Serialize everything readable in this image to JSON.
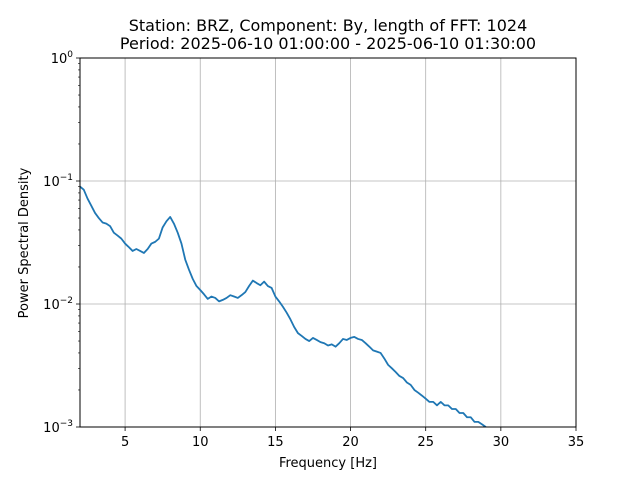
{
  "chart_data": {
    "type": "line",
    "title": [
      "Station: BRZ, Component: By, length of FFT: 1024",
      "Period: 2025-06-10 01:00:00 - 2025-06-10 01:30:00"
    ],
    "xlabel": "Frequency [Hz]",
    "ylabel": "Power Spectral Density",
    "xlim": [
      2,
      35
    ],
    "ylim": [
      0.001,
      1
    ],
    "yscale": "log",
    "grid": true,
    "xticks": [
      5,
      10,
      15,
      20,
      25,
      30,
      35
    ],
    "xtick_labels": [
      "5",
      "10",
      "15",
      "20",
      "25",
      "30",
      "35"
    ],
    "yticks": [
      0.001,
      0.01,
      0.1,
      1
    ],
    "ytick_labels": [
      {
        "base": "10",
        "exp": "−3"
      },
      {
        "base": "10",
        "exp": "−2"
      },
      {
        "base": "10",
        "exp": "−1"
      },
      {
        "base": "10",
        "exp": "0"
      }
    ],
    "series": [
      {
        "color": "#1f77b4",
        "x": [
          2.0,
          2.25,
          2.5,
          2.75,
          3.0,
          3.25,
          3.5,
          3.75,
          4.0,
          4.25,
          4.5,
          4.75,
          5.0,
          5.25,
          5.5,
          5.75,
          6.0,
          6.25,
          6.5,
          6.75,
          7.0,
          7.25,
          7.5,
          7.75,
          8.0,
          8.25,
          8.5,
          8.75,
          9.0,
          9.25,
          9.5,
          9.75,
          10.0,
          10.25,
          10.5,
          10.75,
          11.0,
          11.25,
          11.5,
          11.75,
          12.0,
          12.25,
          12.5,
          12.75,
          13.0,
          13.25,
          13.5,
          13.75,
          14.0,
          14.25,
          14.5,
          14.75,
          15.0,
          15.25,
          15.5,
          15.75,
          16.0,
          16.25,
          16.5,
          16.75,
          17.0,
          17.25,
          17.5,
          17.75,
          18.0,
          18.25,
          18.5,
          18.75,
          19.0,
          19.25,
          19.5,
          19.75,
          20.0,
          20.25,
          20.5,
          20.75,
          21.0,
          21.25,
          21.5,
          21.75,
          22.0,
          22.25,
          22.5,
          22.75,
          23.0,
          23.25,
          23.5,
          23.75,
          24.0,
          24.25,
          24.5,
          24.75,
          25.0,
          25.25,
          25.5,
          25.75,
          26.0,
          26.25,
          26.5,
          26.75,
          27.0,
          27.25,
          27.5,
          27.75,
          28.0,
          28.25,
          28.5,
          28.75,
          29.0
        ],
        "y": [
          0.09,
          0.085,
          0.072,
          0.063,
          0.055,
          0.05,
          0.046,
          0.045,
          0.043,
          0.038,
          0.036,
          0.034,
          0.031,
          0.029,
          0.027,
          0.028,
          0.027,
          0.026,
          0.028,
          0.031,
          0.032,
          0.034,
          0.042,
          0.047,
          0.051,
          0.045,
          0.038,
          0.031,
          0.023,
          0.019,
          0.016,
          0.014,
          0.013,
          0.012,
          0.011,
          0.0115,
          0.0112,
          0.0105,
          0.0108,
          0.0112,
          0.0118,
          0.0115,
          0.0112,
          0.0118,
          0.0125,
          0.014,
          0.0155,
          0.0148,
          0.0142,
          0.0152,
          0.014,
          0.0135,
          0.0115,
          0.0105,
          0.0095,
          0.0085,
          0.0075,
          0.0065,
          0.0058,
          0.0055,
          0.0052,
          0.005,
          0.0053,
          0.0051,
          0.0049,
          0.0048,
          0.0046,
          0.0047,
          0.0045,
          0.0048,
          0.0052,
          0.0051,
          0.0053,
          0.0054,
          0.0052,
          0.0051,
          0.0048,
          0.0045,
          0.0042,
          0.0041,
          0.004,
          0.0036,
          0.0032,
          0.003,
          0.0028,
          0.0026,
          0.0025,
          0.0023,
          0.0022,
          0.002,
          0.0019,
          0.0018,
          0.0017,
          0.0016,
          0.0016,
          0.0015,
          0.0016,
          0.0015,
          0.0015,
          0.0014,
          0.0014,
          0.0013,
          0.0013,
          0.0012,
          0.0012,
          0.0011,
          0.0011,
          0.00105,
          0.001
        ]
      }
    ]
  }
}
